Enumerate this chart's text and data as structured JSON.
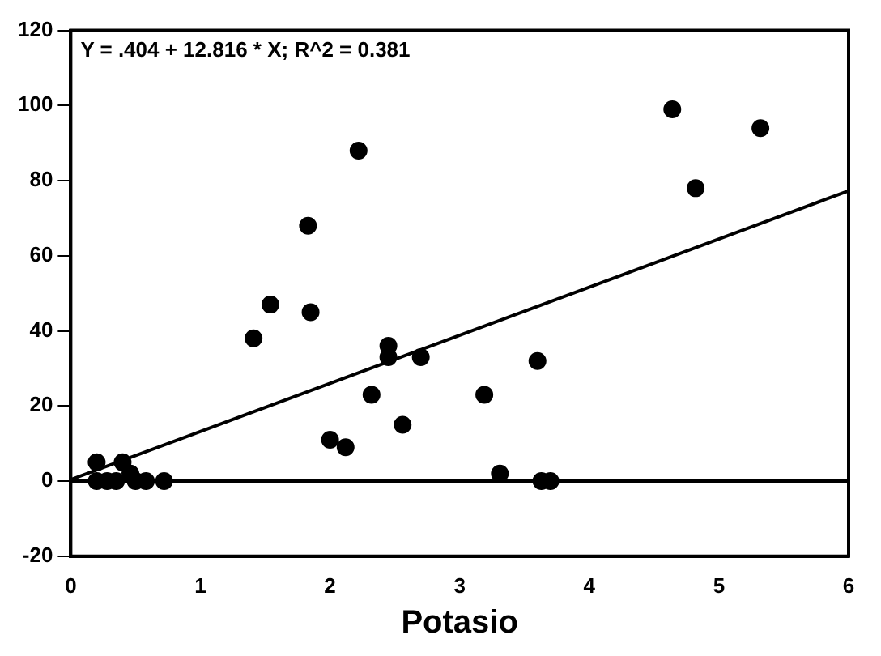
{
  "chart_data": {
    "type": "scatter",
    "xlabel": "Potasio",
    "annotations": [
      "Y = .404 + 12.816 * X; R^2 = 0.381"
    ],
    "xlim": [
      0,
      6
    ],
    "xticks": [
      0,
      1,
      2,
      3,
      4,
      5,
      6
    ],
    "ylim": [
      -20,
      120
    ],
    "yticks": [
      -20,
      0,
      20,
      40,
      60,
      80,
      100,
      120
    ],
    "grid": false,
    "legend": false,
    "marker": "circle",
    "ref_lines": [
      {
        "axis": "y",
        "value": 0,
        "color": "#000000"
      }
    ],
    "series": [
      {
        "color": "#000000",
        "x": [
          0.2,
          0.2,
          0.28,
          0.35,
          0.4,
          0.46,
          0.5,
          0.58,
          0.72,
          1.41,
          1.54,
          1.83,
          1.85,
          2.22,
          2.0,
          2.12,
          2.32,
          2.45,
          2.45,
          2.56,
          2.7,
          3.19,
          3.31,
          3.6,
          3.63,
          3.7,
          4.64,
          4.82,
          5.32
        ],
        "values": [
          5,
          0,
          0,
          0,
          5,
          2,
          0,
          0,
          0,
          38,
          47,
          68,
          45,
          88,
          11,
          9,
          23,
          36,
          33,
          15,
          33,
          23,
          2,
          32,
          0,
          0,
          99,
          78,
          94
        ]
      },
      {
        "type": "line",
        "color": "#000000",
        "marker": "none",
        "x": [
          0,
          6
        ],
        "values": [
          0.4,
          77.3
        ]
      }
    ]
  }
}
